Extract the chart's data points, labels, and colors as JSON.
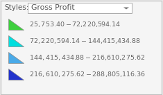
{
  "title_label": "Styles:",
  "dropdown_text": "Gross Profit",
  "legend_entries": [
    {
      "label": "$25,753.40 - $72,220,594.14",
      "color": "#3ecf3e"
    },
    {
      "label": "$72,220,594.14 - $144,415,434.88",
      "color": "#00dede"
    },
    {
      "label": "$144,415,434.88 - $216,610,275.62",
      "color": "#4aaae8"
    },
    {
      "label": "$216,610,275.62 - $288,805,116.36",
      "color": "#2233cc"
    }
  ],
  "background_color": "#e8e8e8",
  "panel_color": "#f5f5f5",
  "border_color": "#c0c0c0",
  "dropdown_bg": "#ffffff",
  "dropdown_border": "#aaaaaa",
  "text_color": "#555555",
  "label_color": "#666666",
  "font_size": 6.8,
  "styles_font_size": 7.5,
  "dropdown_font_size": 7.8,
  "shape_edge_color": "#888888",
  "shape_edge_width": 0.5
}
